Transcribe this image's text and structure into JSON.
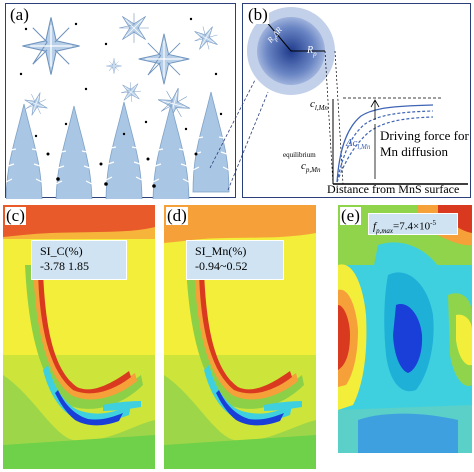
{
  "panels": {
    "a": {
      "tag": "(a)"
    },
    "b": {
      "tag": "(b)",
      "rp_label": "R",
      "rp_sub": "p",
      "rs_label": "R",
      "rs_sub": "p",
      "delta_label": "Δ",
      "dr_label": "R",
      "c_lmn_main": "c",
      "c_lmn_sub": "l,Mn",
      "equilibrium": "equilibrium",
      "c_pmn_main": "c",
      "c_pmn_sub": "p,Mn",
      "dc_main": "Δc",
      "dc_sub": "l,Mn",
      "driving_line1": "Driving force for",
      "driving_line2": "Mn diffusion",
      "x_axis": "Distance from MnS surface"
    },
    "c": {
      "tag": "(c)",
      "legend_title": "SI_C(%)",
      "legend_range": "-3.78  1.85"
    },
    "d": {
      "tag": "(d)",
      "legend_title": "SI_Mn(%)",
      "legend_range": "-0.94~0.52"
    },
    "e": {
      "tag": "(e)",
      "legend_prefix": "f",
      "legend_sub": "p,max",
      "legend_value": "=7.4×10",
      "legend_exp": "-5"
    }
  },
  "colors": {
    "frame": "#2b3f7a",
    "dendrite": "#a9c6e4",
    "contour_yellow": "#f2ee3a",
    "contour_red": "#d93a1f",
    "contour_blue": "#1a3fd8",
    "contour_cyan": "#3fd0e0",
    "contour_green": "#8fd44a"
  }
}
